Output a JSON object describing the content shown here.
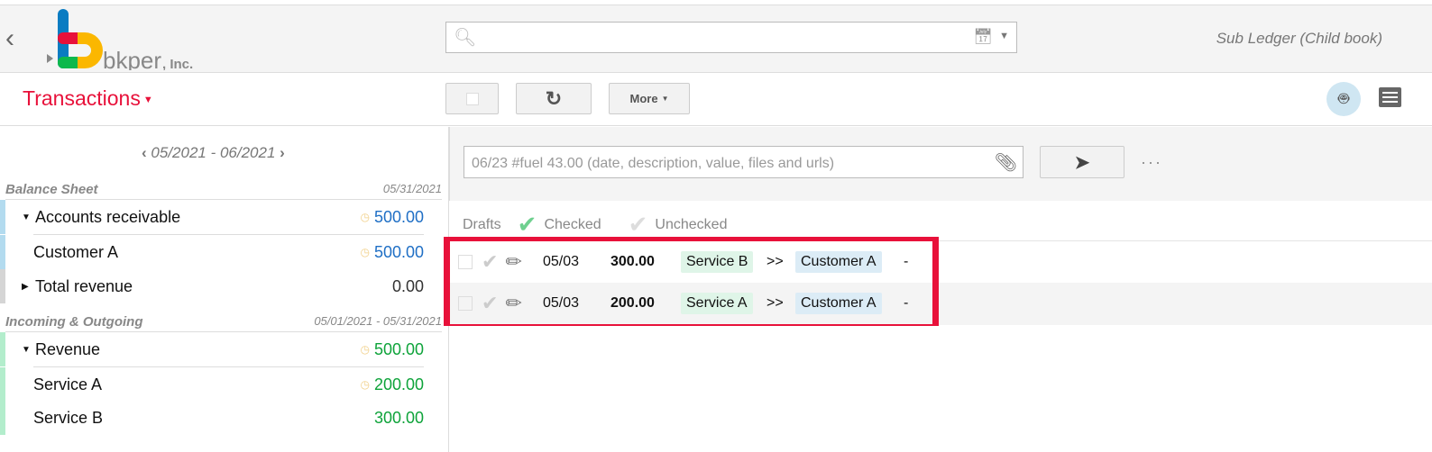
{
  "header": {
    "book_title": "Sub Ledger (Child book)",
    "logo_text": "bkper, Inc.",
    "search_value": ""
  },
  "toolbar": {
    "view_label": "Transactions",
    "more_label": "More"
  },
  "sidebar": {
    "period": "05/2021 - 06/2021",
    "sections": [
      {
        "title": "Balance Sheet",
        "date": "05/31/2021",
        "accounts": [
          {
            "name": "Accounts receivable",
            "value": "500.00",
            "group": true,
            "expanded": true,
            "pending": true,
            "color": "#1f6fc5"
          },
          {
            "name": "Customer A",
            "value": "500.00",
            "pending": true,
            "color": "#1f6fc5"
          },
          {
            "name": "Total revenue",
            "value": "0.00",
            "group": true,
            "expanded": false,
            "color": "#333333"
          }
        ]
      },
      {
        "title": "Incoming & Outgoing",
        "date": "05/01/2021 - 05/31/2021",
        "accounts": [
          {
            "name": "Revenue",
            "value": "500.00",
            "group": true,
            "expanded": true,
            "pending": true,
            "color": "#0ea33a"
          },
          {
            "name": "Service A",
            "value": "200.00",
            "pending": true,
            "color": "#0ea33a"
          },
          {
            "name": "Service B",
            "value": "300.00",
            "color": "#0ea33a"
          }
        ]
      }
    ]
  },
  "composer": {
    "placeholder": "06/23 #fuel 43.00 (date, description, value, files and urls)",
    "more": "···"
  },
  "filters": {
    "drafts": "Drafts",
    "checked": "Checked",
    "unchecked": "Unchecked"
  },
  "transactions": [
    {
      "date": "05/03",
      "amount": "300.00",
      "from": "Service B",
      "arrow": ">>",
      "to": "Customer A",
      "description": "-"
    },
    {
      "date": "05/03",
      "amount": "200.00",
      "from": "Service A",
      "arrow": ">>",
      "to": "Customer A",
      "description": "-"
    }
  ],
  "colors": {
    "accent": "#e8113a",
    "asset": "#b3dbef",
    "incoming": "#b3edcc",
    "from_tag": "#dff5e8",
    "to_tag": "#dcecf6"
  }
}
